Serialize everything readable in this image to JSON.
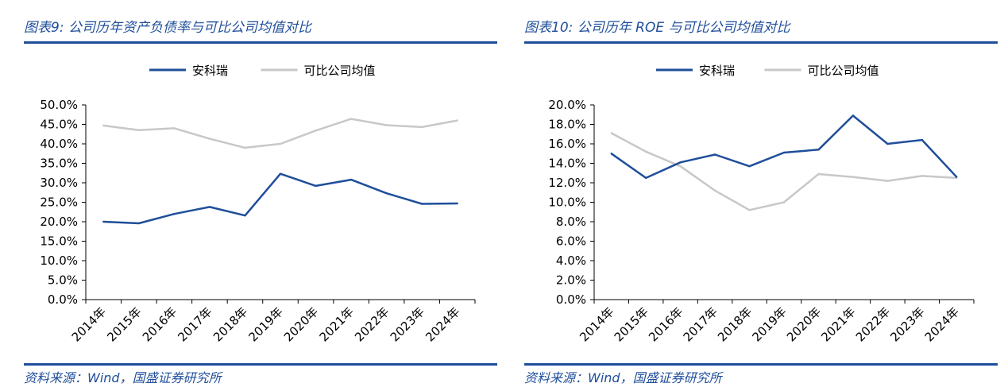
{
  "chart_data": [
    {
      "type": "line",
      "figure_label": "图表9:",
      "title": "公司历年资产负债率与可比公司均值对比",
      "categories": [
        "2014年",
        "2015年",
        "2016年",
        "2017年",
        "2018年",
        "2019年",
        "2020年",
        "2021年",
        "2022年",
        "2023年",
        "2024年"
      ],
      "series": [
        {
          "name": "安科瑞",
          "color": "#1f4e9a",
          "values": [
            20.0,
            19.6,
            22.0,
            23.8,
            21.6,
            32.3,
            29.2,
            30.8,
            27.3,
            24.6,
            24.7
          ]
        },
        {
          "name": "可比公司均值",
          "color": "#c8c8c8",
          "values": [
            44.7,
            43.5,
            44.0,
            41.3,
            39.0,
            40.0,
            43.4,
            46.4,
            44.8,
            44.3,
            46.0
          ]
        }
      ],
      "y_ticks": [
        "0.0%",
        "5.0%",
        "10.0%",
        "15.0%",
        "20.0%",
        "25.0%",
        "30.0%",
        "35.0%",
        "40.0%",
        "45.0%",
        "50.0%"
      ],
      "ylim": [
        0,
        50
      ],
      "legend_position": "top-center",
      "source": "资料来源：Wind，国盛证券研究所"
    },
    {
      "type": "line",
      "figure_label": "图表10:",
      "title": "公司历年 ROE 与可比公司均值对比",
      "categories": [
        "2014年",
        "2015年",
        "2016年",
        "2017年",
        "2018年",
        "2019年",
        "2020年",
        "2021年",
        "2022年",
        "2023年",
        "2024年"
      ],
      "series": [
        {
          "name": "安科瑞",
          "color": "#1f4e9a",
          "values": [
            15.0,
            12.5,
            14.1,
            14.9,
            13.7,
            15.1,
            15.4,
            18.9,
            16.0,
            16.4,
            12.6
          ]
        },
        {
          "name": "可比公司均值",
          "color": "#c8c8c8",
          "values": [
            17.1,
            15.2,
            13.7,
            11.2,
            9.2,
            10.0,
            12.9,
            12.6,
            12.2,
            12.7,
            12.5
          ]
        }
      ],
      "y_ticks": [
        "0.0%",
        "2.0%",
        "4.0%",
        "6.0%",
        "8.0%",
        "10.0%",
        "12.0%",
        "14.0%",
        "16.0%",
        "18.0%",
        "20.0%"
      ],
      "ylim": [
        0,
        20
      ],
      "legend_position": "top-center",
      "source": "资料来源：Wind，国盛证券研究所"
    }
  ]
}
